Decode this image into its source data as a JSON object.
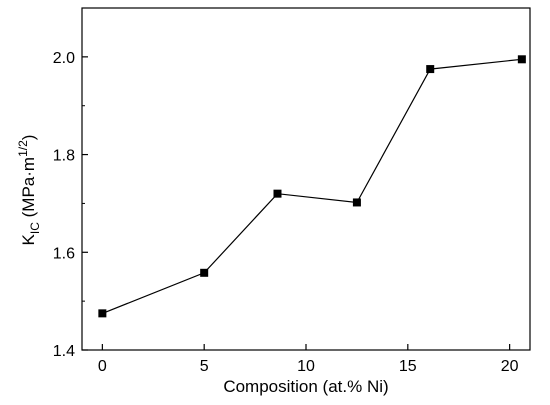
{
  "chart_data": {
    "type": "line",
    "title": "",
    "xlabel": "Composition (at.% Ni)",
    "ylabel": {
      "main": "K",
      "subscript": "IC",
      "unit_open": " (MPa·m",
      "superscript": "1/2",
      "unit_close": ")"
    },
    "xlim": [
      -1,
      21
    ],
    "ylim": [
      1.4,
      2.1
    ],
    "xticks": [
      0,
      5,
      10,
      15,
      20
    ],
    "xtick_labels": [
      "0",
      "5",
      "10",
      "15",
      "20"
    ],
    "yticks": [
      1.4,
      1.6,
      1.8,
      2.0
    ],
    "ytick_labels": [
      "1.4",
      "1.6",
      "1.8",
      "2.0"
    ],
    "grid": false,
    "legend": "none",
    "marker": "square",
    "line_color": "#000000",
    "series": [
      {
        "x": [
          0,
          5,
          8.6,
          12.5,
          16.1,
          20.6
        ],
        "y": [
          1.475,
          1.558,
          1.72,
          1.702,
          1.975,
          1.995
        ]
      }
    ]
  }
}
